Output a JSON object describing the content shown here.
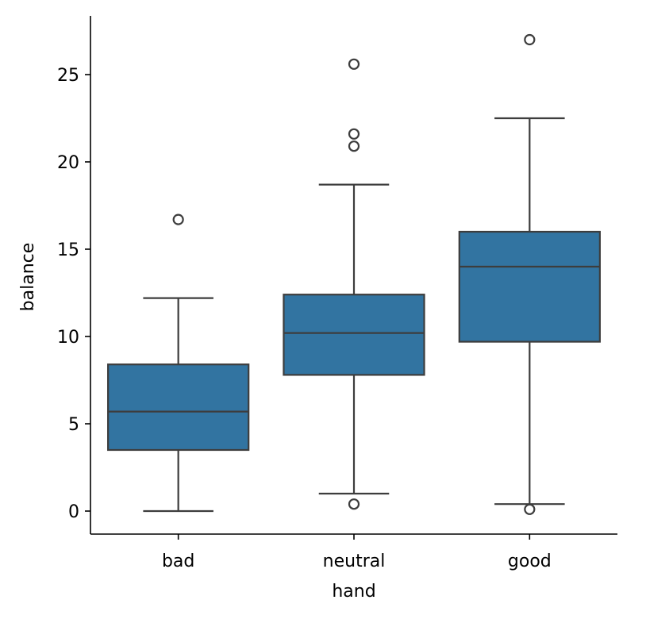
{
  "chart_data": {
    "type": "box",
    "xlabel": "hand",
    "ylabel": "balance",
    "ylim": [
      -1.3,
      28.3
    ],
    "yticks": [
      0,
      5,
      10,
      15,
      20,
      25
    ],
    "categories": [
      "bad",
      "neutral",
      "good"
    ],
    "box_color": "#3274a1",
    "line_color": "#3d3d3d",
    "boxes": [
      {
        "category": "bad",
        "whisker_low": 0.0,
        "q1": 3.5,
        "median": 5.7,
        "q3": 8.4,
        "whisker_high": 12.2,
        "outliers": [
          16.7
        ]
      },
      {
        "category": "neutral",
        "whisker_low": 1.0,
        "q1": 7.8,
        "median": 10.2,
        "q3": 12.4,
        "whisker_high": 18.7,
        "outliers": [
          0.4,
          20.9,
          21.6,
          25.6
        ]
      },
      {
        "category": "good",
        "whisker_low": 0.4,
        "q1": 9.7,
        "median": 14.0,
        "q3": 16.0,
        "whisker_high": 22.5,
        "outliers": [
          0.1,
          27.0
        ]
      }
    ]
  }
}
